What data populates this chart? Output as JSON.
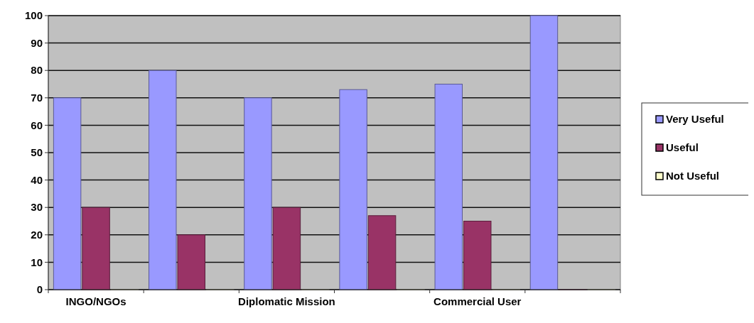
{
  "chart_data": {
    "type": "bar",
    "categories": [
      "INGO/NGOs",
      null,
      "Diplomatic Mission",
      null,
      "Commercial User",
      null
    ],
    "series": [
      {
        "name": "Very Useful",
        "color": "#9999ff",
        "values": [
          70,
          80,
          70,
          73,
          75,
          100
        ]
      },
      {
        "name": "Useful",
        "color": "#993366",
        "values": [
          30,
          20,
          30,
          27,
          25,
          0
        ]
      },
      {
        "name": "Not Useful",
        "color": "#ffffcc",
        "values": [
          0,
          0,
          0,
          0,
          0,
          0
        ]
      }
    ],
    "ylim": [
      0,
      100
    ],
    "yticks": [
      0,
      10,
      20,
      30,
      40,
      50,
      60,
      70,
      80,
      90,
      100
    ],
    "grid": "y",
    "legend": "right"
  }
}
